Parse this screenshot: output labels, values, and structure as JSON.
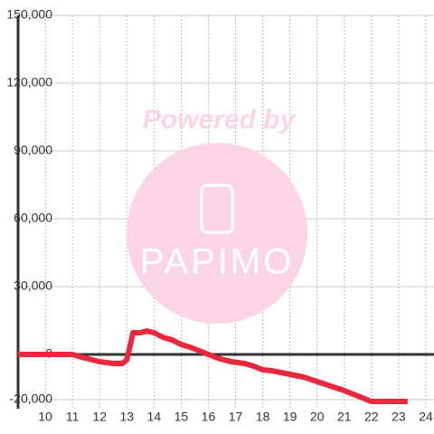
{
  "chart_data": {
    "type": "line",
    "watermark": {
      "text": "Powered by",
      "logo": "PAPIMO"
    },
    "x": [
      9,
      11,
      11.33,
      12,
      12.5,
      12.83,
      13,
      13.23,
      13.5,
      13.73,
      14,
      14.33,
      14.67,
      15,
      15.33,
      15.67,
      16,
      16.33,
      16.83,
      17.33,
      17.67,
      18,
      18.33,
      18.67,
      19,
      19.5,
      20,
      20.5,
      21,
      21.5,
      22,
      23.33
    ],
    "series": [
      {
        "color": "#e8283c",
        "values": [
          0,
          0,
          -1200,
          -3200,
          -4000,
          -4000,
          -2400,
          9600,
          9600,
          10400,
          9600,
          7600,
          6400,
          4400,
          3200,
          1600,
          0,
          -1600,
          -3200,
          -4000,
          -5200,
          -6800,
          -7200,
          -8000,
          -8800,
          -10000,
          -12000,
          -14000,
          -16000,
          -18400,
          -20800,
          -20800
        ]
      }
    ],
    "xlim": [
      9,
      24.3
    ],
    "xticks": [
      10,
      11,
      12,
      13,
      14,
      15,
      16,
      17,
      18,
      19,
      20,
      21,
      22,
      23,
      24
    ],
    "ylim": [
      -24000,
      150000
    ],
    "yticks": [
      {
        "value": -20000,
        "label": "-20,000"
      },
      0,
      {
        "value": 30000,
        "label": "30,000"
      },
      {
        "value": 60000,
        "label": "60,000"
      },
      {
        "value": 90000,
        "label": "90,000"
      },
      {
        "value": 120000,
        "label": "120,000"
      },
      {
        "value": 150000,
        "label": "150,000"
      }
    ],
    "grid": true
  }
}
